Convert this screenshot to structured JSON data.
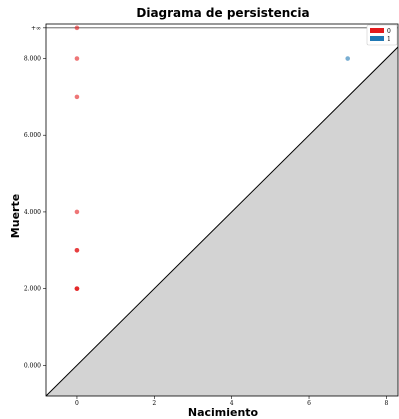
{
  "chart_data": {
    "type": "scatter",
    "title": "Diagrama de persistencia",
    "xlabel": "Nacimiento",
    "ylabel": "Muerte",
    "xlim": [
      -0.8,
      8.3
    ],
    "ylim": [
      -0.8,
      8.9
    ],
    "x_ticks": [
      {
        "value": 0,
        "label": "0"
      },
      {
        "value": 2,
        "label": "2"
      },
      {
        "value": 4,
        "label": "4"
      },
      {
        "value": 6,
        "label": "6"
      },
      {
        "value": 8,
        "label": "8"
      }
    ],
    "y_ticks": [
      {
        "value": 0,
        "label": "0.000"
      },
      {
        "value": 2,
        "label": "2.000"
      },
      {
        "value": 4,
        "label": "4.000"
      },
      {
        "value": 6,
        "label": "6.000"
      },
      {
        "value": 8,
        "label": "8.000"
      }
    ],
    "infinity": {
      "value": 8.8,
      "label": "+∞"
    },
    "legend": {
      "placement": "top-right",
      "entries": [
        {
          "label": "0",
          "color": "#e31a1c"
        },
        {
          "label": "1",
          "color": "#1f78b4"
        }
      ]
    },
    "series": [
      {
        "name": "0",
        "color": "#e31a1c",
        "points": [
          {
            "x": 0,
            "y": 8.8
          },
          {
            "x": 0,
            "y": 8.0
          },
          {
            "x": 0,
            "y": 7.0
          },
          {
            "x": 0,
            "y": 4.0
          },
          {
            "x": 0,
            "y": 3.0
          },
          {
            "x": 0,
            "y": 3.0
          },
          {
            "x": 0,
            "y": 2.0
          },
          {
            "x": 0,
            "y": 2.0
          },
          {
            "x": 0,
            "y": 2.0
          }
        ]
      },
      {
        "name": "1",
        "color": "#1f78b4",
        "points": [
          {
            "x": 7.0,
            "y": 8.0
          }
        ]
      }
    ],
    "diagonal_fill": "#d3d3d3",
    "grid": false
  }
}
